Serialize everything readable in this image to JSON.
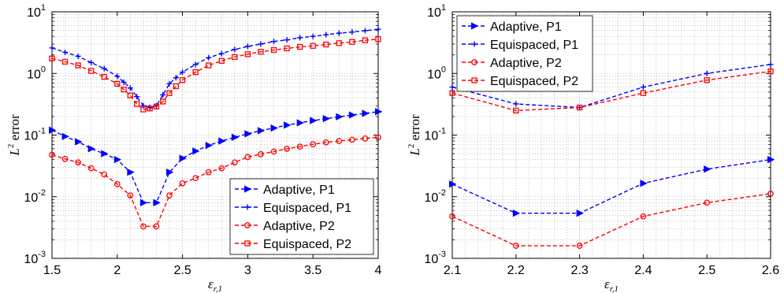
{
  "chart_data": [
    {
      "type": "line",
      "yscale": "log",
      "xlim": [
        1.5,
        4.0
      ],
      "ylim": [
        0.001,
        10
      ],
      "xticks": [
        "1.5",
        "2",
        "2.5",
        "3",
        "3.5",
        "4"
      ],
      "xtick_values": [
        1.5,
        2.0,
        2.5,
        3.0,
        3.5,
        4.0
      ],
      "yticks": [
        {
          "base": "10",
          "exp": "-3",
          "value": 0.001
        },
        {
          "base": "10",
          "exp": "-2",
          "value": 0.01
        },
        {
          "base": "10",
          "exp": "-1",
          "value": 0.1
        },
        {
          "base": "10",
          "exp": "0",
          "value": 1
        },
        {
          "base": "10",
          "exp": "1",
          "value": 10
        }
      ],
      "xlabel": {
        "base": "ε",
        "sub": "r,1"
      },
      "ylabel": {
        "main": "L",
        "sup": "2",
        "rest": " error"
      },
      "grid": true,
      "legend_position": "bottom-right",
      "series": [
        {
          "name": "Adaptive, P1",
          "color": "#0000ff",
          "marker": "triangle-right",
          "x": [
            1.5,
            1.6,
            1.7,
            1.8,
            1.9,
            2.0,
            2.1,
            2.2,
            2.3,
            2.4,
            2.5,
            2.6,
            2.7,
            2.8,
            2.9,
            3.0,
            3.1,
            3.2,
            3.3,
            3.4,
            3.5,
            3.6,
            3.7,
            3.8,
            3.9,
            4.0
          ],
          "y": [
            0.12,
            0.095,
            0.078,
            0.06,
            0.05,
            0.04,
            0.025,
            0.008,
            0.008,
            0.025,
            0.042,
            0.055,
            0.068,
            0.08,
            0.092,
            0.105,
            0.118,
            0.13,
            0.145,
            0.158,
            0.172,
            0.185,
            0.198,
            0.212,
            0.225,
            0.24
          ]
        },
        {
          "name": "Equispaced, P1",
          "color": "#0000ff",
          "marker": "plus",
          "x": [
            1.5,
            1.6,
            1.7,
            1.8,
            1.9,
            2.0,
            2.05,
            2.1,
            2.15,
            2.2,
            2.25,
            2.3,
            2.35,
            2.4,
            2.45,
            2.5,
            2.6,
            2.7,
            2.8,
            2.9,
            3.0,
            3.1,
            3.2,
            3.3,
            3.4,
            3.5,
            3.6,
            3.7,
            3.8,
            3.9,
            4.0
          ],
          "y": [
            2.6,
            2.2,
            1.9,
            1.5,
            1.2,
            0.9,
            0.72,
            0.58,
            0.42,
            0.3,
            0.28,
            0.3,
            0.45,
            0.68,
            0.85,
            1.05,
            1.4,
            1.8,
            2.1,
            2.45,
            2.75,
            3.0,
            3.3,
            3.5,
            3.8,
            4.0,
            4.25,
            4.5,
            4.7,
            4.95,
            5.2
          ]
        },
        {
          "name": "Adaptive, P2",
          "color": "#ff0000",
          "marker": "circle",
          "x": [
            1.5,
            1.6,
            1.7,
            1.8,
            1.9,
            2.0,
            2.1,
            2.2,
            2.3,
            2.4,
            2.5,
            2.6,
            2.7,
            2.8,
            2.9,
            3.0,
            3.1,
            3.2,
            3.3,
            3.4,
            3.5,
            3.6,
            3.7,
            3.8,
            3.9,
            4.0
          ],
          "y": [
            0.048,
            0.041,
            0.036,
            0.029,
            0.023,
            0.016,
            0.0105,
            0.0033,
            0.0033,
            0.0105,
            0.0165,
            0.02,
            0.025,
            0.029,
            0.036,
            0.044,
            0.049,
            0.054,
            0.06,
            0.065,
            0.071,
            0.076,
            0.08,
            0.084,
            0.088,
            0.092
          ]
        },
        {
          "name": "Equispaced, P2",
          "color": "#ff0000",
          "marker": "square",
          "x": [
            1.5,
            1.6,
            1.7,
            1.8,
            1.9,
            2.0,
            2.05,
            2.1,
            2.15,
            2.2,
            2.25,
            2.3,
            2.35,
            2.4,
            2.45,
            2.5,
            2.6,
            2.7,
            2.8,
            2.9,
            3.0,
            3.1,
            3.2,
            3.3,
            3.4,
            3.5,
            3.6,
            3.7,
            3.8,
            3.9,
            4.0
          ],
          "y": [
            1.75,
            1.55,
            1.35,
            1.1,
            0.88,
            0.68,
            0.55,
            0.44,
            0.32,
            0.26,
            0.27,
            0.29,
            0.35,
            0.48,
            0.62,
            0.78,
            1.05,
            1.35,
            1.6,
            1.85,
            2.05,
            2.25,
            2.4,
            2.55,
            2.7,
            2.8,
            2.95,
            3.1,
            3.25,
            3.45,
            3.6
          ]
        }
      ]
    },
    {
      "type": "line",
      "yscale": "log",
      "xlim": [
        2.1,
        2.6
      ],
      "ylim": [
        0.001,
        10
      ],
      "xticks": [
        "2.1",
        "2.2",
        "2.3",
        "2.4",
        "2.5",
        "2.6"
      ],
      "xtick_values": [
        2.1,
        2.2,
        2.3,
        2.4,
        2.5,
        2.6
      ],
      "yticks": [
        {
          "base": "10",
          "exp": "-3",
          "value": 0.001
        },
        {
          "base": "10",
          "exp": "-2",
          "value": 0.01
        },
        {
          "base": "10",
          "exp": "-1",
          "value": 0.1
        },
        {
          "base": "10",
          "exp": "0",
          "value": 1
        },
        {
          "base": "10",
          "exp": "1",
          "value": 10
        }
      ],
      "xlabel": {
        "base": "ε",
        "sub": "r,1"
      },
      "ylabel": {
        "main": "L",
        "sup": "2",
        "rest": " error"
      },
      "grid": true,
      "legend_position": "top-left",
      "series": [
        {
          "name": "Adaptive, P1",
          "color": "#0000ff",
          "marker": "triangle-right",
          "x": [
            2.1,
            2.2,
            2.3,
            2.4,
            2.5,
            2.6
          ],
          "y": [
            0.016,
            0.0054,
            0.0054,
            0.0165,
            0.028,
            0.04
          ]
        },
        {
          "name": "Equispaced, P1",
          "color": "#0000ff",
          "marker": "plus",
          "x": [
            2.1,
            2.2,
            2.3,
            2.4,
            2.5,
            2.6
          ],
          "y": [
            0.6,
            0.32,
            0.28,
            0.6,
            1.0,
            1.4
          ]
        },
        {
          "name": "Adaptive, P2",
          "color": "#ff0000",
          "marker": "circle",
          "x": [
            2.1,
            2.2,
            2.3,
            2.4,
            2.5,
            2.6
          ],
          "y": [
            0.0048,
            0.0016,
            0.0016,
            0.0048,
            0.008,
            0.0112
          ]
        },
        {
          "name": "Equispaced, P2",
          "color": "#ff0000",
          "marker": "square",
          "x": [
            2.1,
            2.2,
            2.3,
            2.4,
            2.5,
            2.6
          ],
          "y": [
            0.48,
            0.25,
            0.28,
            0.48,
            0.78,
            1.08
          ]
        }
      ]
    }
  ]
}
